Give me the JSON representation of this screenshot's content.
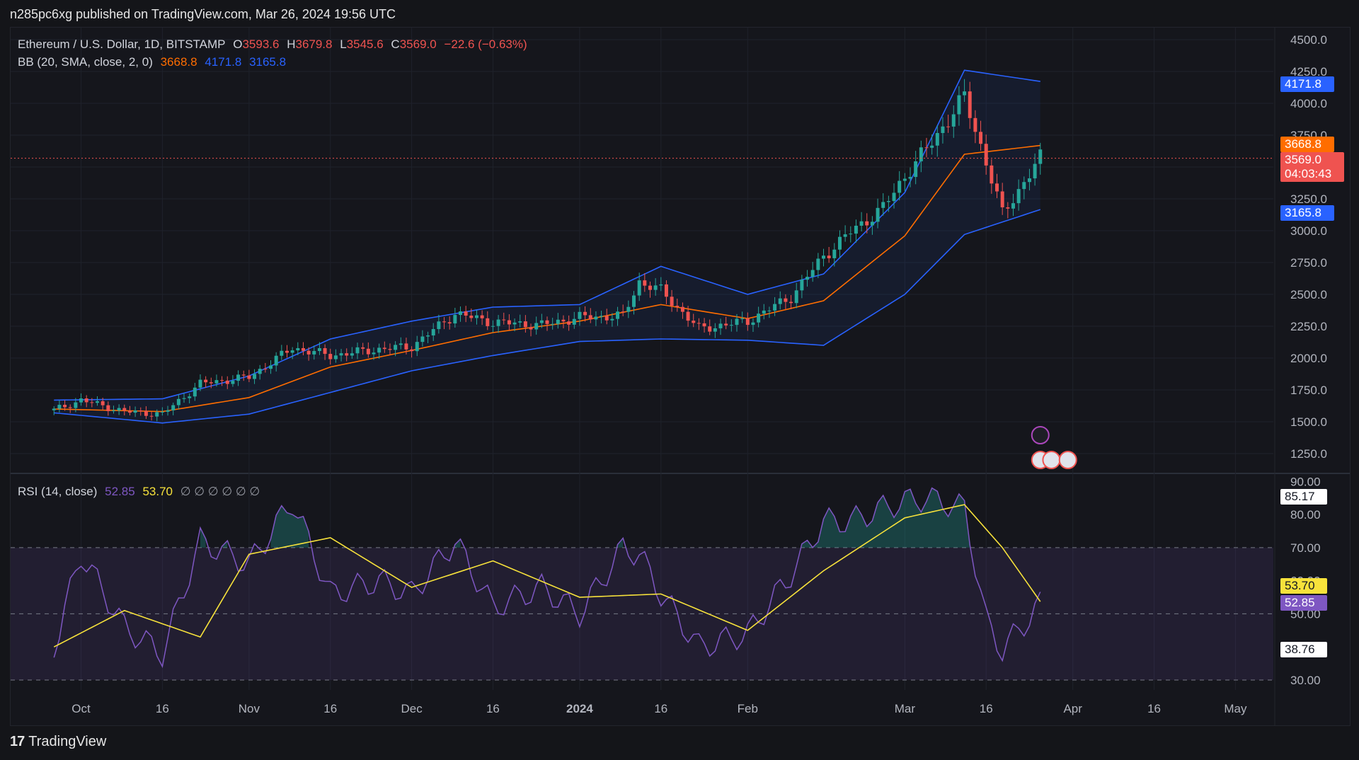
{
  "header": {
    "published": "n285pc6xg published on TradingView.com, Mar 26, 2024 19:56 UTC"
  },
  "legend_main": {
    "symbol": "Ethereum / U.S. Dollar, 1D, BITSTAMP",
    "o_label": "O",
    "o_value": "3593.6",
    "h_label": "H",
    "h_value": "3679.8",
    "l_label": "L",
    "l_value": "3545.6",
    "c_label": "C",
    "c_value": "3569.0",
    "change": "−22.6 (−0.63%)"
  },
  "legend_bb": {
    "label": "BB (20, SMA, close, 2, 0)",
    "basis": "3668.8",
    "upper": "4171.8",
    "lower": "3165.8"
  },
  "legend_rsi": {
    "label": "RSI (14, close)",
    "rsi": "52.85",
    "ma": "53.70",
    "dots": "∅ ∅ ∅ ∅ ∅ ∅"
  },
  "price_tags": {
    "upper": "4171.8",
    "basis": "3668.8",
    "last": "3569.0",
    "countdown": "04:03:43",
    "lower": "3165.8"
  },
  "rsi_tags": {
    "high": "85.17",
    "ma": "53.70",
    "rsi": "52.85",
    "low": "38.76"
  },
  "footer": {
    "brand": "TradingView"
  },
  "colors": {
    "up": "#26a69a",
    "down": "#ef5350",
    "bb_band": "#2962ff",
    "bb_basis": "#ff6d00",
    "rsi": "#7e57c2",
    "rsi_ma": "#f7e23b",
    "background": "#15161c"
  },
  "chart_data": [
    {
      "type": "line",
      "title": "Ethereum / U.S. Dollar, 1D, BITSTAMP",
      "y_axis_ticks": [
        "4500.0",
        "4250.0",
        "4000.0",
        "3750.0",
        "3500.0",
        "3250.0",
        "3000.0",
        "2750.0",
        "2500.0",
        "2250.0",
        "2000.0",
        "1750.0",
        "1500.0",
        "1250.0"
      ],
      "x_axis_ticks": [
        "Oct",
        "16",
        "Nov",
        "16",
        "Dec",
        "16",
        "2024",
        "16",
        "Feb",
        "Mar",
        "16",
        "Apr",
        "16",
        "May"
      ],
      "ylim": [
        1150,
        4550
      ],
      "grid": true,
      "series": [
        {
          "name": "Close",
          "x": [
            "2023-09-26",
            "2023-10-01",
            "2023-10-09",
            "2023-10-16",
            "2023-10-23",
            "2023-11-01",
            "2023-11-09",
            "2023-11-16",
            "2023-11-25",
            "2023-12-01",
            "2023-12-09",
            "2023-12-16",
            "2023-12-25",
            "2024-01-01",
            "2024-01-09",
            "2024-01-12",
            "2024-01-16",
            "2024-01-23",
            "2024-02-01",
            "2024-02-09",
            "2024-02-15",
            "2024-02-20",
            "2024-02-26",
            "2024-03-01",
            "2024-03-05",
            "2024-03-12",
            "2024-03-16",
            "2024-03-19",
            "2024-03-22",
            "2024-03-26"
          ],
          "values": [
            1590,
            1670,
            1580,
            1560,
            1800,
            1850,
            2080,
            2020,
            2070,
            2090,
            2350,
            2280,
            2260,
            2320,
            2330,
            2600,
            2530,
            2230,
            2290,
            2480,
            2800,
            2990,
            3180,
            3430,
            3640,
            4050,
            3540,
            3130,
            3320,
            3569
          ]
        },
        {
          "name": "BB Upper",
          "x": [
            "2023-09-26",
            "2023-10-16",
            "2023-11-01",
            "2023-11-16",
            "2023-12-01",
            "2023-12-16",
            "2024-01-01",
            "2024-01-16",
            "2024-02-01",
            "2024-02-15",
            "2024-03-01",
            "2024-03-12",
            "2024-03-26"
          ],
          "values": [
            1670,
            1680,
            1860,
            2150,
            2290,
            2400,
            2420,
            2720,
            2500,
            2660,
            3300,
            4260,
            4172
          ]
        },
        {
          "name": "BB Basis",
          "x": [
            "2023-09-26",
            "2023-10-16",
            "2023-11-01",
            "2023-11-16",
            "2023-12-01",
            "2023-12-16",
            "2024-01-01",
            "2024-01-16",
            "2024-02-01",
            "2024-02-15",
            "2024-03-01",
            "2024-03-12",
            "2024-03-26"
          ],
          "values": [
            1600,
            1580,
            1690,
            1930,
            2060,
            2200,
            2290,
            2420,
            2310,
            2450,
            2960,
            3600,
            3669
          ]
        },
        {
          "name": "BB Lower",
          "x": [
            "2023-09-26",
            "2023-10-16",
            "2023-11-01",
            "2023-11-16",
            "2023-12-01",
            "2023-12-16",
            "2024-01-01",
            "2024-01-16",
            "2024-02-01",
            "2024-02-15",
            "2024-03-01",
            "2024-03-12",
            "2024-03-26"
          ],
          "values": [
            1570,
            1490,
            1560,
            1730,
            1900,
            2020,
            2130,
            2150,
            2140,
            2100,
            2500,
            2970,
            3166
          ]
        }
      ]
    },
    {
      "type": "line",
      "title": "RSI (14, close)",
      "y_axis_ticks": [
        "90.00",
        "80.00",
        "70.00",
        "60.00",
        "50.00",
        "40.00",
        "30.00"
      ],
      "ylim": [
        27,
        92
      ],
      "bands": [
        30,
        50,
        70
      ],
      "series": [
        {
          "name": "RSI",
          "x": [
            "2023-09-26",
            "2023-10-01",
            "2023-10-09",
            "2023-10-16",
            "2023-10-23",
            "2023-11-01",
            "2023-11-09",
            "2023-11-16",
            "2023-11-25",
            "2023-12-01",
            "2023-12-09",
            "2023-12-16",
            "2023-12-25",
            "2024-01-01",
            "2024-01-09",
            "2024-01-12",
            "2024-01-16",
            "2024-01-23",
            "2024-02-01",
            "2024-02-09",
            "2024-02-15",
            "2024-02-20",
            "2024-02-26",
            "2024-03-01",
            "2024-03-05",
            "2024-03-12",
            "2024-03-16",
            "2024-03-19",
            "2024-03-22",
            "2024-03-26"
          ],
          "values": [
            40,
            68,
            46,
            38,
            72,
            65,
            84,
            56,
            60,
            56,
            72,
            52,
            58,
            50,
            70,
            68,
            56,
            40,
            44,
            62,
            78,
            78,
            82,
            84,
            85,
            82,
            48,
            39,
            45,
            52.85
          ]
        },
        {
          "name": "RSI-based MA",
          "x": [
            "2023-09-26",
            "2023-10-09",
            "2023-10-23",
            "2023-11-01",
            "2023-11-16",
            "2023-12-01",
            "2023-12-16",
            "2024-01-01",
            "2024-01-16",
            "2024-02-01",
            "2024-02-15",
            "2024-03-01",
            "2024-03-12",
            "2024-03-19",
            "2024-03-26"
          ],
          "values": [
            40,
            51,
            43,
            68,
            73,
            58,
            66,
            55,
            56,
            45,
            63,
            79,
            83,
            70,
            53.7
          ]
        }
      ]
    }
  ]
}
